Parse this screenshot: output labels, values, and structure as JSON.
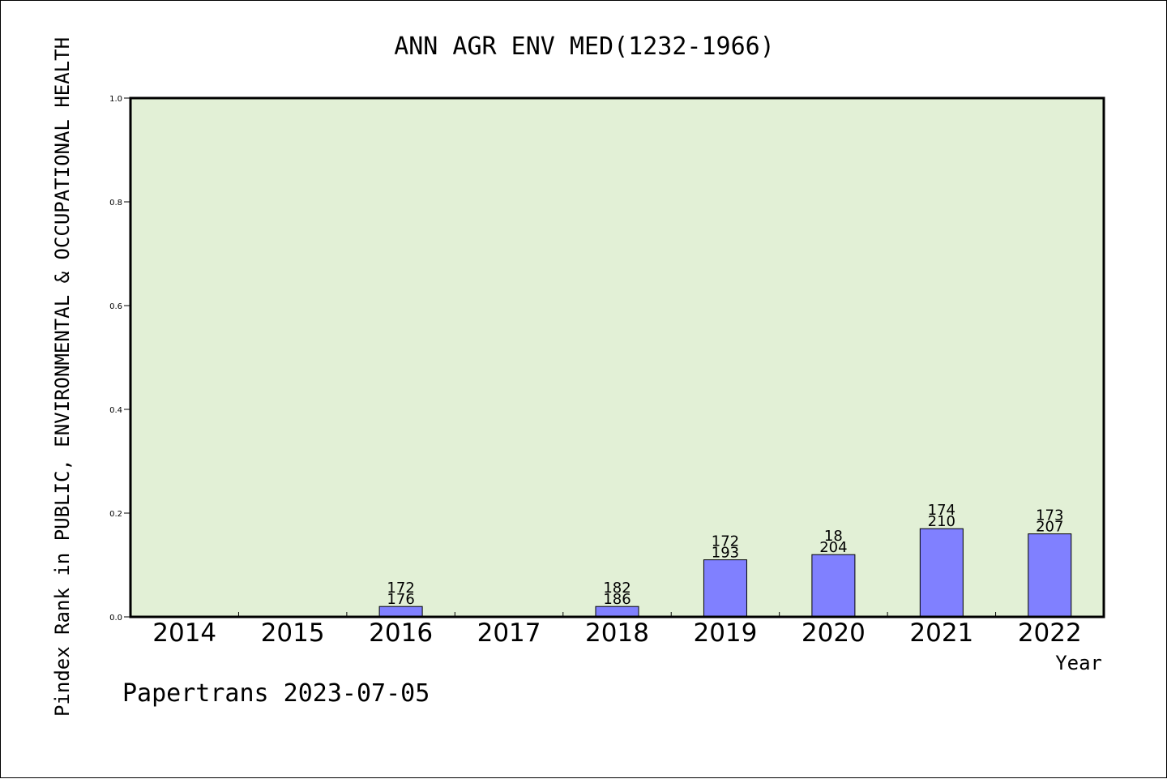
{
  "chart_data": {
    "type": "bar",
    "title": "ANN AGR ENV MED(1232-1966)",
    "ylabel": "Pindex Rank in PUBLIC, ENVIRONMENTAL & OCCUPATIONAL HEALTH",
    "xlabel": "Year",
    "ylim": [
      0,
      1.0
    ],
    "yticks": [
      "0.0",
      "0.2",
      "0.4",
      "0.6",
      "0.8",
      "1.0"
    ],
    "categories": [
      "2014",
      "2015",
      "2016",
      "2017",
      "2018",
      "2019",
      "2020",
      "2021",
      "2022"
    ],
    "values": [
      0,
      0,
      0.02,
      0,
      0.02,
      0.11,
      0.12,
      0.17,
      0.16
    ],
    "labels_top": [
      "",
      "",
      "172",
      "",
      "182",
      "172",
      "18",
      "174",
      "173"
    ],
    "labels_bottom": [
      "",
      "",
      "176",
      "",
      "186",
      "193",
      "204",
      "210",
      "207"
    ],
    "grid": false,
    "legend": "none",
    "colors": {
      "bar": "#8080ff",
      "plot_bg": "#e2f0d6",
      "axis": "#000000"
    }
  },
  "footer": {
    "credit": "Papertrans 2023-07-05"
  }
}
